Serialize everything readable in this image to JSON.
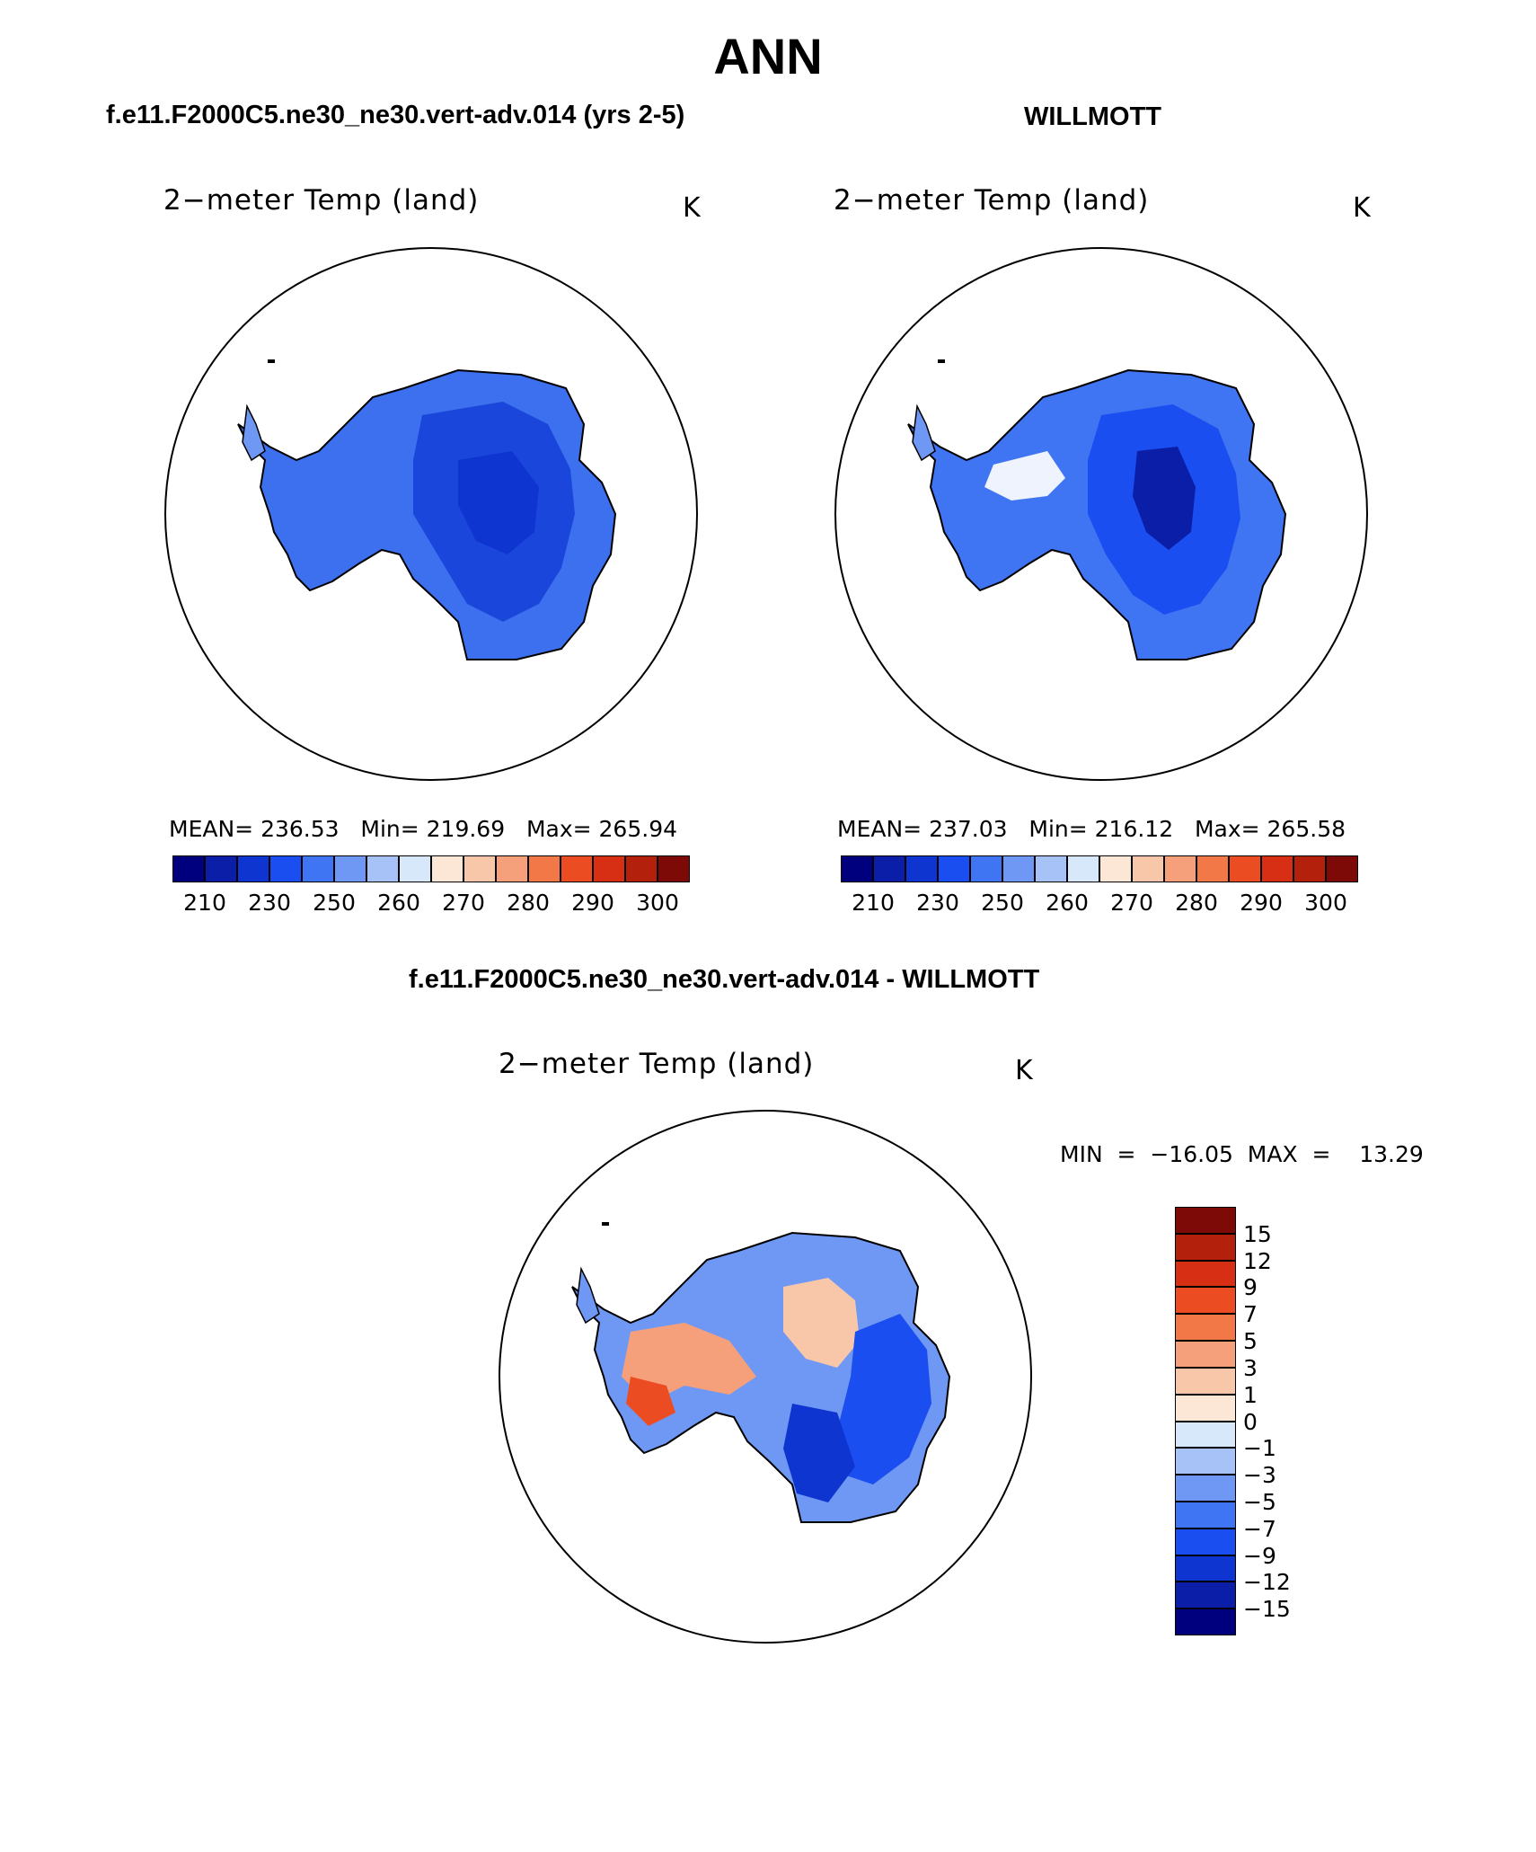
{
  "title": "ANN",
  "panels": {
    "model": {
      "header": "f.e11.F2000C5.ne30_ne30.vert-adv.014 (yrs 2-5)",
      "field": "2−meter Temp (land)",
      "units": "K",
      "stats": "MEAN= 236.53   Min= 219.69   Max= 265.94"
    },
    "obs": {
      "header": "WILLMOTT",
      "field": "2−meter Temp (land)",
      "units": "K",
      "stats": "MEAN= 237.03   Min= 216.12   Max= 265.58"
    },
    "diff": {
      "header": "f.e11.F2000C5.ne30_ne30.vert-adv.014 - WILLMOTT",
      "field": "2−meter Temp (land)",
      "units": "K",
      "stats": "MIN  =  −16.05  MAX  =    13.29"
    }
  },
  "colorbars": {
    "abs": {
      "ticks": [
        "210",
        "230",
        "250",
        "260",
        "270",
        "280",
        "290",
        "300"
      ],
      "colors": [
        "#00007f",
        "#0a1ea8",
        "#0f35d0",
        "#1b4ef0",
        "#3f74f2",
        "#6f98f4",
        "#a6c2f7",
        "#d8e8fb",
        "#fce6d6",
        "#f8c6a8",
        "#f5a07a",
        "#f27848",
        "#ec4c22",
        "#d62f14",
        "#b3200c",
        "#7d0a06"
      ]
    },
    "diff": {
      "ticks": [
        "15",
        "12",
        "9",
        "7",
        "5",
        "3",
        "1",
        "0",
        "−1",
        "−3",
        "−5",
        "−7",
        "−9",
        "−12",
        "−15"
      ],
      "colors": [
        "#7d0a06",
        "#b3200c",
        "#d62f14",
        "#ec4c22",
        "#f27848",
        "#f5a07a",
        "#f8c6a8",
        "#fce6d6",
        "#d8e8fb",
        "#a6c2f7",
        "#6f98f4",
        "#3f74f2",
        "#1b4ef0",
        "#0f35d0",
        "#0a1ea8",
        "#00007f"
      ]
    }
  },
  "maps": {
    "projection": "polar-stereographic",
    "region": "Antarctica",
    "model_fill": "#2f62ea",
    "obs_fill": "#3a6eee",
    "diff_warm_fill": "#f5a07a",
    "diff_cool_fill": "#1b4ef0"
  }
}
